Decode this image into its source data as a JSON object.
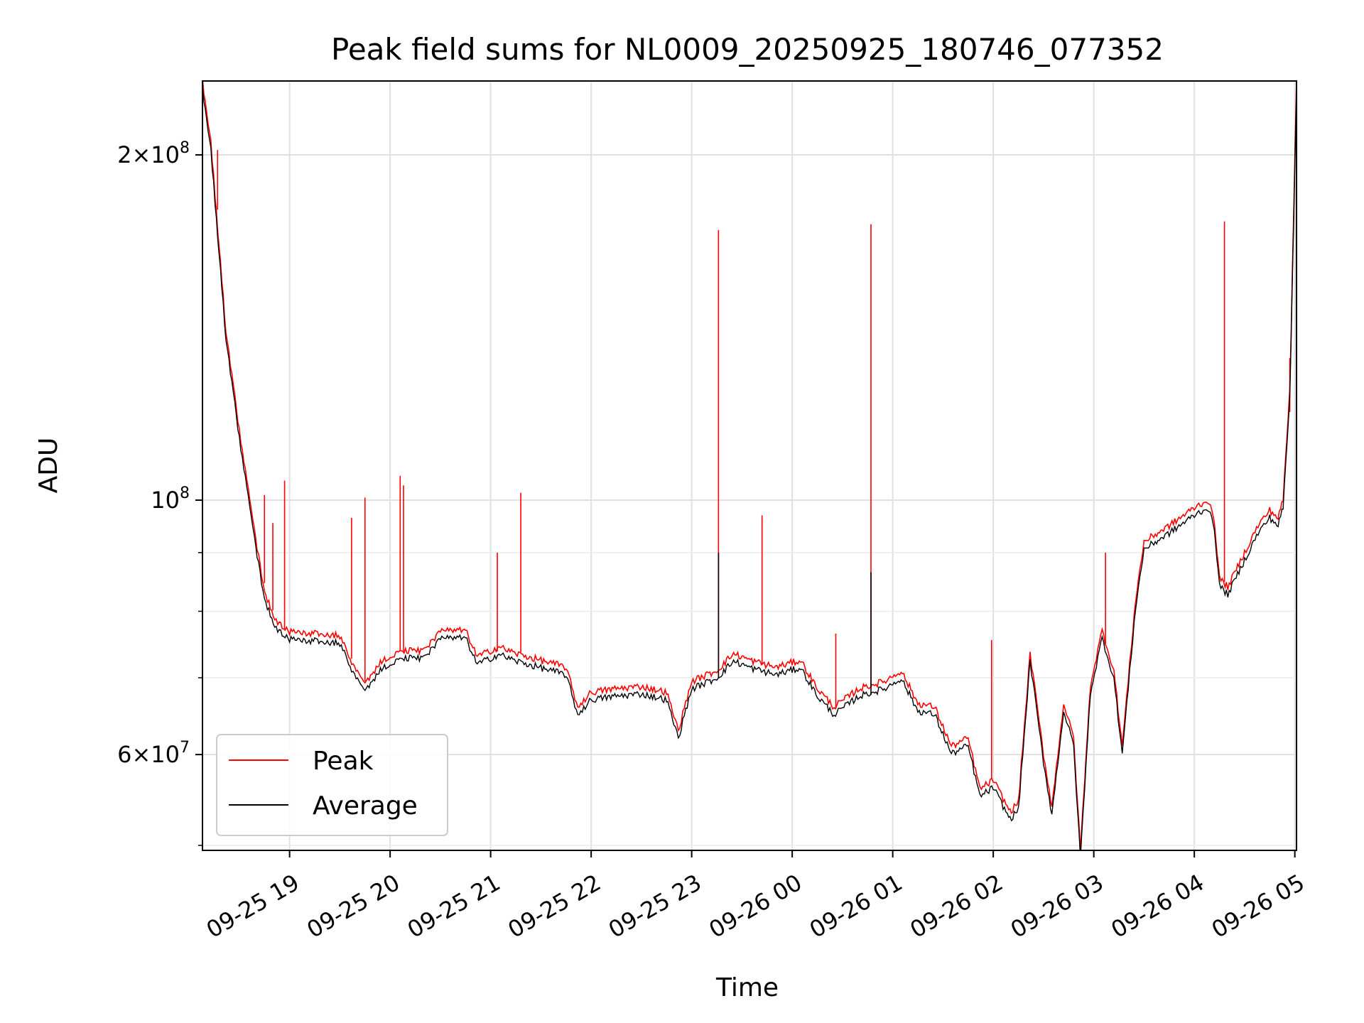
{
  "chart_data": {
    "type": "line",
    "title": "Peak field sums for NL0009_20250925_180746_077352",
    "xlabel": "Time",
    "ylabel": "ADU",
    "yscale": "log",
    "ylim": [
      49500000,
      232000000
    ],
    "xlim": [
      "2025-09-25 18:08",
      "2025-09-26 05:01"
    ],
    "grid": true,
    "legend": {
      "placement": "lower-left"
    },
    "x_ticks": [
      "09-25 19",
      "09-25 20",
      "09-25 21",
      "09-25 22",
      "09-25 23",
      "09-26 00",
      "09-26 01",
      "09-26 02",
      "09-26 03",
      "09-26 04",
      "09-26 05"
    ],
    "y_ticks": [
      {
        "value": 200000000,
        "mantissa": "2",
        "exponent": "8"
      },
      {
        "value": 100000000,
        "mantissa": "",
        "exponent": "8"
      },
      {
        "value": 60000000,
        "mantissa": "6",
        "exponent": "7"
      }
    ],
    "y_minor_ticks": [
      50000000,
      70000000,
      80000000,
      90000000
    ],
    "series": [
      {
        "name": "Peak",
        "color": "#ff0000",
        "baseline": [
          [
            "2025-09-25 18:08",
            232000000
          ],
          [
            "2025-09-25 18:13",
            205000000
          ],
          [
            "2025-09-25 18:22",
            140000000
          ],
          [
            "2025-09-25 18:30",
            115000000
          ],
          [
            "2025-09-25 18:38",
            96000000
          ],
          [
            "2025-09-25 18:45",
            83000000
          ],
          [
            "2025-09-25 18:52",
            78500000
          ],
          [
            "2025-09-25 19:00",
            76800000
          ],
          [
            "2025-09-25 19:15",
            76500000
          ],
          [
            "2025-09-25 19:30",
            76200000
          ],
          [
            "2025-09-25 19:37",
            72000000
          ],
          [
            "2025-09-25 19:45",
            69200000
          ],
          [
            "2025-09-25 19:55",
            72500000
          ],
          [
            "2025-09-25 20:10",
            74000000
          ],
          [
            "2025-09-25 20:20",
            73800000
          ],
          [
            "2025-09-25 20:30",
            76800000
          ],
          [
            "2025-09-25 20:45",
            77000000
          ],
          [
            "2025-09-25 20:52",
            73000000
          ],
          [
            "2025-09-25 21:05",
            74500000
          ],
          [
            "2025-09-25 21:15",
            73500000
          ],
          [
            "2025-09-25 21:30",
            72500000
          ],
          [
            "2025-09-25 21:45",
            71500000
          ],
          [
            "2025-09-25 21:52",
            66000000
          ],
          [
            "2025-09-25 22:00",
            68000000
          ],
          [
            "2025-09-25 22:15",
            68500000
          ],
          [
            "2025-09-25 22:30",
            68800000
          ],
          [
            "2025-09-25 22:45",
            68000000
          ],
          [
            "2025-09-25 22:52",
            63000000
          ],
          [
            "2025-09-25 23:00",
            69500000
          ],
          [
            "2025-09-25 23:15",
            71000000
          ],
          [
            "2025-09-25 23:25",
            73500000
          ],
          [
            "2025-09-25 23:35",
            72500000
          ],
          [
            "2025-09-25 23:50",
            71500000
          ],
          [
            "2025-09-26 00:05",
            72500000
          ],
          [
            "2025-09-26 00:15",
            68500000
          ],
          [
            "2025-09-26 00:25",
            66000000
          ],
          [
            "2025-09-26 00:40",
            68500000
          ],
          [
            "2025-09-26 00:55",
            69500000
          ],
          [
            "2025-09-26 01:05",
            71000000
          ],
          [
            "2025-09-26 01:15",
            66500000
          ],
          [
            "2025-09-26 01:25",
            66000000
          ],
          [
            "2025-09-26 01:35",
            61000000
          ],
          [
            "2025-09-26 01:45",
            62000000
          ],
          [
            "2025-09-26 01:52",
            56000000
          ],
          [
            "2025-09-26 02:00",
            57000000
          ],
          [
            "2025-09-26 02:10",
            53500000
          ],
          [
            "2025-09-26 02:15",
            54500000
          ],
          [
            "2025-09-26 02:22",
            73500000
          ],
          [
            "2025-09-26 02:30",
            60000000
          ],
          [
            "2025-09-26 02:35",
            54000000
          ],
          [
            "2025-09-26 02:42",
            66500000
          ],
          [
            "2025-09-26 02:48",
            62000000
          ],
          [
            "2025-09-26 02:52",
            49500000
          ],
          [
            "2025-09-26 02:58",
            69000000
          ],
          [
            "2025-09-26 03:05",
            77000000
          ],
          [
            "2025-09-26 03:12",
            71000000
          ],
          [
            "2025-09-26 03:17",
            61000000
          ],
          [
            "2025-09-26 03:25",
            82000000
          ],
          [
            "2025-09-26 03:30",
            92000000
          ],
          [
            "2025-09-26 03:45",
            95000000
          ],
          [
            "2025-09-26 04:00",
            98500000
          ],
          [
            "2025-09-26 04:08",
            100000000
          ],
          [
            "2025-09-26 04:12",
            96000000
          ],
          [
            "2025-09-26 04:15",
            85500000
          ],
          [
            "2025-09-26 04:20",
            84000000
          ],
          [
            "2025-09-26 04:30",
            90000000
          ],
          [
            "2025-09-26 04:38",
            95000000
          ],
          [
            "2025-09-26 04:45",
            98000000
          ],
          [
            "2025-09-26 04:50",
            96500000
          ],
          [
            "2025-09-26 04:53",
            100000000
          ],
          [
            "2025-09-26 04:57",
            125000000
          ],
          [
            "2025-09-26 05:01",
            232000000
          ]
        ],
        "spikes": [
          [
            "2025-09-25 18:17",
            202000000
          ],
          [
            "2025-09-25 18:45",
            101000000
          ],
          [
            "2025-09-25 18:50",
            95500000
          ],
          [
            "2025-09-25 18:57",
            104000000
          ],
          [
            "2025-09-25 19:37",
            96500000
          ],
          [
            "2025-09-25 19:45",
            100500000
          ],
          [
            "2025-09-25 20:06",
            105000000
          ],
          [
            "2025-09-25 20:08",
            103000000
          ],
          [
            "2025-09-25 21:04",
            90000000
          ],
          [
            "2025-09-25 21:18",
            101500000
          ],
          [
            "2025-09-25 23:16",
            172000000
          ],
          [
            "2025-09-25 23:42",
            97000000
          ],
          [
            "2025-09-26 00:26",
            76500000
          ],
          [
            "2025-09-26 00:47",
            174000000
          ],
          [
            "2025-09-26 01:59",
            75500000
          ],
          [
            "2025-09-26 03:07",
            90000000
          ],
          [
            "2025-09-26 04:18",
            175000000
          ],
          [
            "2025-09-26 04:57",
            133000000
          ]
        ]
      },
      {
        "name": "Average",
        "color": "#000000",
        "offset_ratio": 0.985,
        "spikes": [
          [
            "2025-09-25 23:16",
            90000000
          ],
          [
            "2025-09-26 00:47",
            86500000
          ]
        ]
      }
    ]
  }
}
